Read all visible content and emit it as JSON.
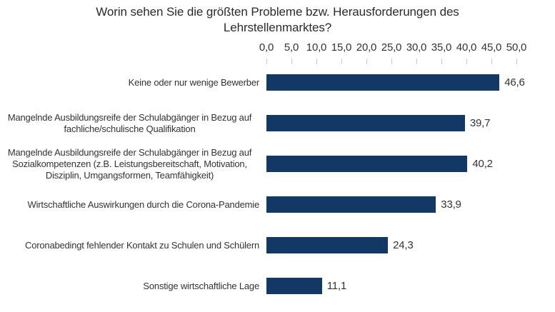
{
  "chart_data": {
    "type": "bar",
    "orientation": "horizontal",
    "title": "Worin sehen Sie die größten Probleme bzw. Herausforderungen des Lehrstellenmarktes?",
    "categories": [
      "Keine oder nur wenige Bewerber",
      "Mangelnde Ausbildungsreife der Schulabgänger in Bezug auf fachliche/schulische Qualifikation",
      "Mangelnde Ausbildungsreife der Schulabgänger in Bezug auf Sozialkompetenzen (z.B. Leistungsbereitschaft, Motivation, Disziplin, Umgangsformen, Teamfähigkeit)",
      "Wirtschaftliche Auswirkungen durch die Corona-Pandemie",
      "Coronabedingt fehlender Kontakt zu Schulen und Schülern",
      "Sonstige wirtschaftliche Lage"
    ],
    "values": [
      46.6,
      39.7,
      40.2,
      33.9,
      24.3,
      11.1
    ],
    "value_labels": [
      "46,6",
      "39,7",
      "40,2",
      "33,9",
      "24,3",
      "11,1"
    ],
    "x_tick_labels": [
      "0,0",
      "5,0",
      "10,0",
      "15,0",
      "20,0",
      "25,0",
      "30,0",
      "35,0",
      "40,0",
      "45,0",
      "50,0"
    ],
    "xlim": [
      0,
      50
    ],
    "xlabel": "",
    "ylabel": "",
    "legend": "none",
    "grid": "vertical gridlines on",
    "value_axis_position": "top",
    "colors": {
      "bar": "#123866",
      "gridline": "#d9dee3",
      "tick_mark": "#c4c9ce",
      "text": "#333333",
      "title": "#2b2b2b",
      "background": "#ffffff"
    }
  }
}
